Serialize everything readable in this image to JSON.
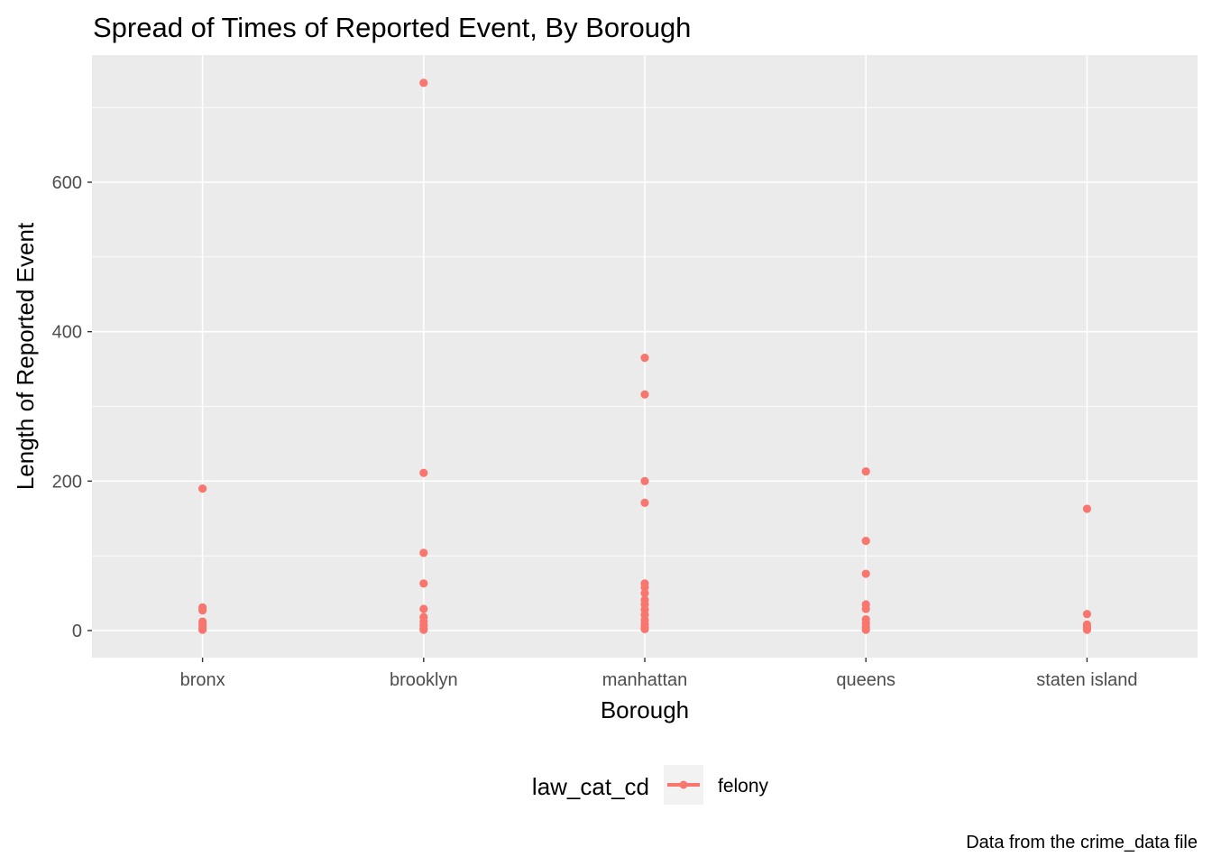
{
  "chart_data": {
    "type": "scatter",
    "title": "Spread of Times of Reported Event, By Borough",
    "xlabel": "Borough",
    "ylabel": "Length of Reported Event",
    "caption": "Data from the crime_data file",
    "categories": [
      "bronx",
      "brooklyn",
      "manhattan",
      "queens",
      "staten island"
    ],
    "ylim": [
      -35,
      770
    ],
    "yticks": [
      0,
      200,
      400,
      600
    ],
    "ytick_labels": [
      "0",
      "200",
      "400",
      "600"
    ],
    "grid": true,
    "legend": {
      "title": "law_cat_cd",
      "position": "bottom",
      "entries": [
        {
          "label": "felony",
          "color": "#F8766D"
        }
      ]
    },
    "series": [
      {
        "name": "felony",
        "color": "#F8766D",
        "points": [
          {
            "x": "bronx",
            "y": 190
          },
          {
            "x": "bronx",
            "y": 31
          },
          {
            "x": "bronx",
            "y": 27
          },
          {
            "x": "bronx",
            "y": 12
          },
          {
            "x": "bronx",
            "y": 8
          },
          {
            "x": "bronx",
            "y": 4
          },
          {
            "x": "bronx",
            "y": 1
          },
          {
            "x": "brooklyn",
            "y": 733
          },
          {
            "x": "brooklyn",
            "y": 211
          },
          {
            "x": "brooklyn",
            "y": 104
          },
          {
            "x": "brooklyn",
            "y": 63
          },
          {
            "x": "brooklyn",
            "y": 29
          },
          {
            "x": "brooklyn",
            "y": 18
          },
          {
            "x": "brooklyn",
            "y": 12
          },
          {
            "x": "brooklyn",
            "y": 7
          },
          {
            "x": "brooklyn",
            "y": 3
          },
          {
            "x": "brooklyn",
            "y": 1
          },
          {
            "x": "manhattan",
            "y": 365
          },
          {
            "x": "manhattan",
            "y": 316
          },
          {
            "x": "manhattan",
            "y": 200
          },
          {
            "x": "manhattan",
            "y": 171
          },
          {
            "x": "manhattan",
            "y": 63
          },
          {
            "x": "manhattan",
            "y": 58
          },
          {
            "x": "manhattan",
            "y": 50
          },
          {
            "x": "manhattan",
            "y": 41
          },
          {
            "x": "manhattan",
            "y": 35
          },
          {
            "x": "manhattan",
            "y": 28
          },
          {
            "x": "manhattan",
            "y": 21
          },
          {
            "x": "manhattan",
            "y": 14
          },
          {
            "x": "manhattan",
            "y": 9
          },
          {
            "x": "manhattan",
            "y": 5
          },
          {
            "x": "manhattan",
            "y": 2
          },
          {
            "x": "queens",
            "y": 213
          },
          {
            "x": "queens",
            "y": 120
          },
          {
            "x": "queens",
            "y": 76
          },
          {
            "x": "queens",
            "y": 35
          },
          {
            "x": "queens",
            "y": 29
          },
          {
            "x": "queens",
            "y": 15
          },
          {
            "x": "queens",
            "y": 10
          },
          {
            "x": "queens",
            "y": 5
          },
          {
            "x": "queens",
            "y": 1
          },
          {
            "x": "staten island",
            "y": 163
          },
          {
            "x": "staten island",
            "y": 22
          },
          {
            "x": "staten island",
            "y": 8
          },
          {
            "x": "staten island",
            "y": 4
          },
          {
            "x": "staten island",
            "y": 1
          }
        ]
      }
    ]
  }
}
